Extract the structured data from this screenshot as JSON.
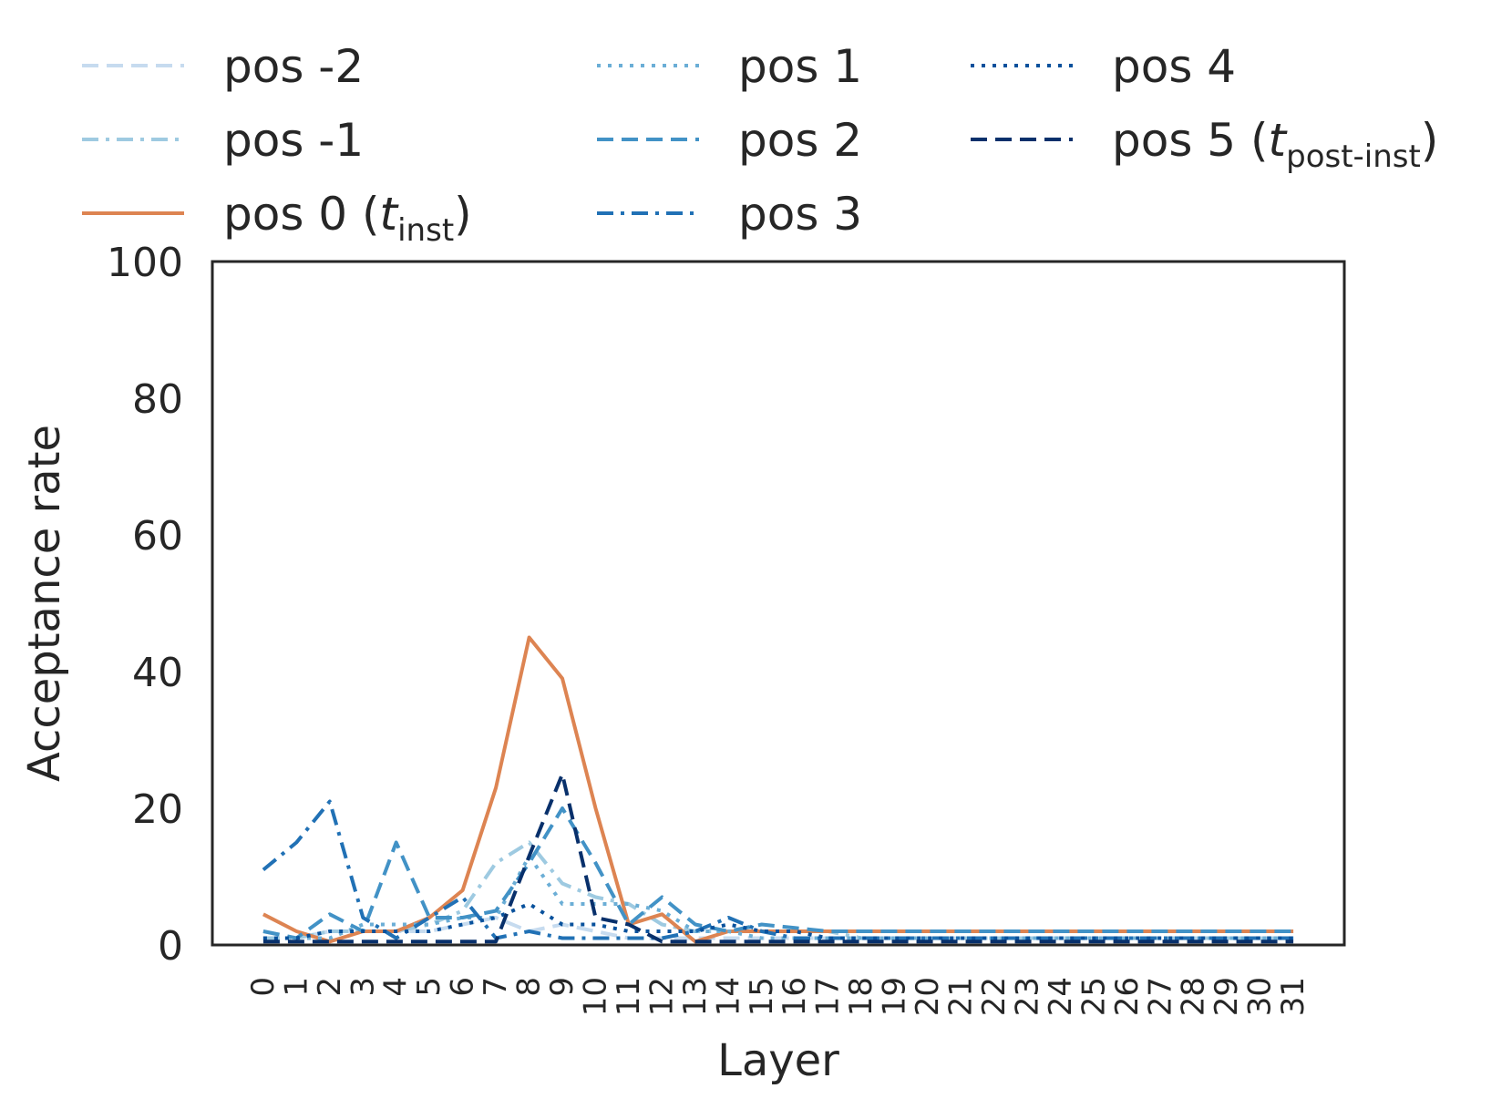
{
  "chart_data": {
    "type": "line",
    "xlabel": "Layer",
    "ylabel": "Acceptance rate",
    "ylim": [
      0,
      100
    ],
    "yticks": [
      "0",
      "20",
      "40",
      "60",
      "80",
      "100"
    ],
    "x": [
      0,
      1,
      2,
      3,
      4,
      5,
      6,
      7,
      8,
      9,
      10,
      11,
      12,
      13,
      14,
      15,
      16,
      17,
      18,
      19,
      20,
      21,
      22,
      23,
      24,
      25,
      26,
      27,
      28,
      29,
      30,
      31
    ],
    "xtick_labels": [
      "0",
      "1",
      "2",
      "3",
      "4",
      "5",
      "6",
      "7",
      "8",
      "9",
      "10",
      "11",
      "12",
      "13",
      "14",
      "15",
      "16",
      "17",
      "18",
      "19",
      "20",
      "21",
      "22",
      "23",
      "24",
      "25",
      "26",
      "27",
      "28",
      "29",
      "30",
      "31"
    ],
    "grid": false,
    "legend_position": "top",
    "series": [
      {
        "name": "pos -2",
        "color": "#c6dbef",
        "dash": "dashed",
        "values": [
          2,
          1,
          2,
          2,
          2,
          2,
          3,
          4,
          2,
          3,
          2,
          1,
          1,
          1,
          1,
          1,
          1,
          1,
          1,
          1,
          1,
          1,
          1,
          1,
          1,
          1,
          1,
          1,
          1,
          1,
          1,
          1
        ]
      },
      {
        "name": "pos -1",
        "color": "#9ecae1",
        "dash": "dashdot",
        "values": [
          1,
          1,
          2,
          2,
          2,
          3,
          5,
          12,
          15,
          9,
          7,
          6,
          3,
          2,
          2,
          2,
          2,
          2,
          1,
          1,
          1,
          1,
          1,
          1,
          1,
          1,
          1,
          1,
          1,
          1,
          1,
          1
        ]
      },
      {
        "name": "pos 0",
        "name_math": "t",
        "name_sub": "inst",
        "color": "#dd8452",
        "dash": "solid",
        "values": [
          4.5,
          2,
          0.5,
          2,
          2,
          4,
          8,
          23,
          45,
          39,
          20,
          3,
          4.5,
          0.5,
          2,
          2,
          2,
          2,
          2,
          2,
          2,
          2,
          2,
          2,
          2,
          2,
          2,
          2,
          2,
          2,
          2,
          2
        ]
      },
      {
        "name": "pos 1",
        "color": "#6baed6",
        "dash": "dotted",
        "values": [
          1,
          1,
          1,
          3,
          3,
          3,
          4,
          4,
          13,
          6,
          6,
          6,
          5,
          2,
          2,
          1,
          1,
          1,
          1,
          1,
          1,
          1,
          1,
          1,
          1,
          1,
          1,
          1,
          1,
          1,
          1,
          1
        ]
      },
      {
        "name": "pos 2",
        "color": "#4292c6",
        "dash": "dashed",
        "values": [
          2,
          1,
          4.5,
          2,
          15,
          4,
          4,
          5,
          12,
          20,
          12,
          3,
          7,
          3,
          2,
          3,
          2.5,
          2,
          2,
          2,
          2,
          2,
          2,
          2,
          2,
          2,
          2,
          2,
          2,
          2,
          2,
          2
        ]
      },
      {
        "name": "pos 3",
        "color": "#2171b5",
        "dash": "dashdot",
        "values": [
          11,
          15,
          21,
          4,
          1,
          4,
          7,
          1,
          2,
          1,
          1,
          1,
          1,
          2,
          4,
          2,
          1,
          1,
          1,
          1,
          1,
          1,
          1,
          1,
          1,
          1,
          1,
          1,
          1,
          1,
          1,
          1
        ]
      },
      {
        "name": "pos 4",
        "color": "#08519c",
        "dash": "dotted",
        "values": [
          1,
          1,
          2,
          2,
          2,
          2,
          3,
          4,
          6,
          3,
          3,
          2,
          2,
          2,
          3,
          2,
          2,
          1,
          1,
          1,
          1,
          1,
          1,
          1,
          1,
          1,
          1,
          1,
          1,
          1,
          1,
          1
        ]
      },
      {
        "name": "pos 5",
        "name_math": "t",
        "name_sub": "post-inst",
        "color": "#08306b",
        "dash": "dashed",
        "values": [
          0.5,
          0.5,
          0.5,
          0.5,
          0.5,
          0.5,
          0.5,
          0.5,
          13,
          25,
          4,
          3,
          0.5,
          0.5,
          0.5,
          0.5,
          0.5,
          0.5,
          0.5,
          0.5,
          0.5,
          0.5,
          0.5,
          0.5,
          0.5,
          0.5,
          0.5,
          0.5,
          0.5,
          0.5,
          0.5,
          0.5
        ]
      }
    ]
  }
}
